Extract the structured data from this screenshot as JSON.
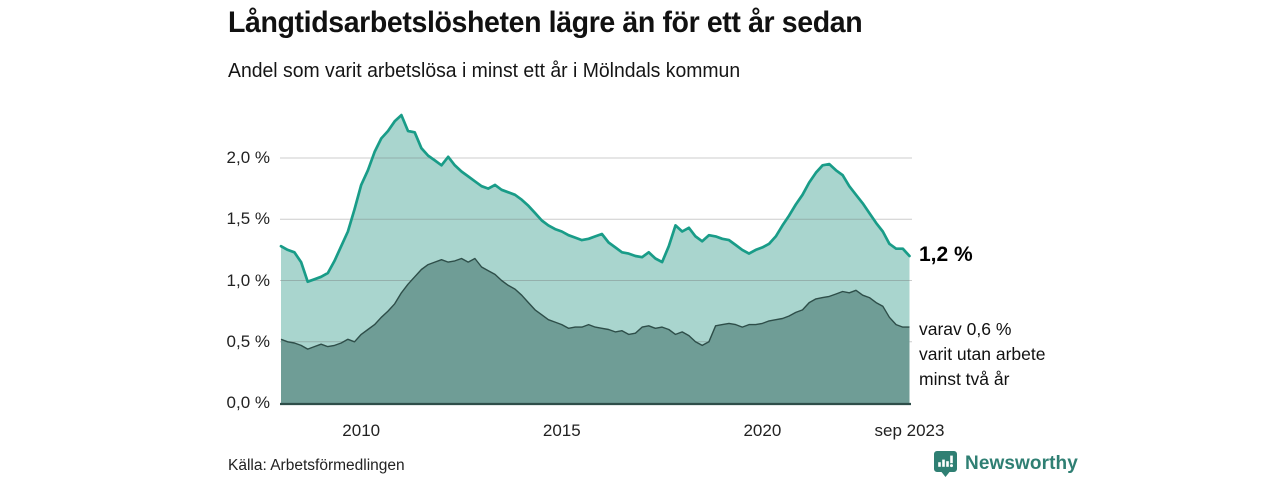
{
  "footer": {
    "brand_label": "Newsworthy"
  },
  "chart_data": {
    "type": "area",
    "title": "Långtidsarbetslösheten lägre än för ett år sedan",
    "subtitle": "Andel som varit arbetslösa i minst ett år i Mölndals kommun",
    "source": "Källa: Arbetsförmedlingen",
    "grid": "horizontal",
    "legend_position": "none",
    "x_start_year": 2008.0,
    "x_step_months": 2,
    "xlim": [
      2008.0,
      2023.75
    ],
    "ylim": [
      0,
      2.45
    ],
    "y_ticks": [
      {
        "value": 0.0,
        "label": "0,0 %"
      },
      {
        "value": 0.5,
        "label": "0,5 %"
      },
      {
        "value": 1.0,
        "label": "1,0 %"
      },
      {
        "value": 1.5,
        "label": "1,5 %"
      },
      {
        "value": 2.0,
        "label": "2,0 %"
      }
    ],
    "x_ticks": [
      {
        "year": 2010.0,
        "label": "2010"
      },
      {
        "year": 2015.0,
        "label": "2015"
      },
      {
        "year": 2020.0,
        "label": "2020"
      },
      {
        "year": 2023.667,
        "label": "sep 2023"
      }
    ],
    "series": [
      {
        "name": "Andel arbetslösa minst ett år",
        "color_fill": "#a9d5ce",
        "color_line": "#199c88",
        "latest_value": 1.2,
        "values": [
          1.28,
          1.25,
          1.23,
          1.15,
          0.99,
          1.01,
          1.03,
          1.06,
          1.16,
          1.28,
          1.4,
          1.58,
          1.78,
          1.9,
          2.05,
          2.16,
          2.22,
          2.3,
          2.35,
          2.22,
          2.21,
          2.08,
          2.02,
          1.98,
          1.94,
          2.01,
          1.94,
          1.89,
          1.85,
          1.81,
          1.77,
          1.75,
          1.78,
          1.74,
          1.72,
          1.7,
          1.66,
          1.61,
          1.55,
          1.49,
          1.45,
          1.42,
          1.4,
          1.37,
          1.35,
          1.33,
          1.34,
          1.36,
          1.38,
          1.31,
          1.27,
          1.23,
          1.22,
          1.2,
          1.19,
          1.23,
          1.18,
          1.15,
          1.28,
          1.45,
          1.4,
          1.43,
          1.36,
          1.32,
          1.37,
          1.36,
          1.34,
          1.33,
          1.29,
          1.25,
          1.22,
          1.25,
          1.27,
          1.3,
          1.36,
          1.45,
          1.53,
          1.62,
          1.7,
          1.8,
          1.88,
          1.94,
          1.95,
          1.9,
          1.86,
          1.77,
          1.7,
          1.63,
          1.55,
          1.47,
          1.4,
          1.3,
          1.26,
          1.26,
          1.2
        ]
      },
      {
        "name": "varav utan arbete minst två år",
        "color_fill": "#6f9d96",
        "color_line": "#2e4e49",
        "latest_value": 0.6,
        "values": [
          0.52,
          0.5,
          0.49,
          0.47,
          0.44,
          0.46,
          0.48,
          0.46,
          0.47,
          0.49,
          0.52,
          0.5,
          0.56,
          0.6,
          0.64,
          0.7,
          0.75,
          0.81,
          0.9,
          0.97,
          1.03,
          1.09,
          1.13,
          1.15,
          1.17,
          1.15,
          1.16,
          1.18,
          1.15,
          1.18,
          1.11,
          1.08,
          1.05,
          1.0,
          0.96,
          0.93,
          0.88,
          0.82,
          0.76,
          0.72,
          0.68,
          0.66,
          0.64,
          0.61,
          0.62,
          0.62,
          0.64,
          0.62,
          0.61,
          0.6,
          0.58,
          0.59,
          0.56,
          0.57,
          0.62,
          0.63,
          0.61,
          0.62,
          0.6,
          0.56,
          0.58,
          0.55,
          0.5,
          0.47,
          0.5,
          0.63,
          0.64,
          0.65,
          0.64,
          0.62,
          0.64,
          0.64,
          0.65,
          0.67,
          0.68,
          0.69,
          0.71,
          0.74,
          0.76,
          0.82,
          0.85,
          0.86,
          0.87,
          0.89,
          0.91,
          0.9,
          0.92,
          0.88,
          0.86,
          0.82,
          0.79,
          0.7,
          0.64,
          0.62,
          0.62
        ]
      }
    ],
    "annotation": {
      "total": "1,2 %",
      "secondary": [
        "varav 0,6 %",
        "varit utan arbete",
        "minst två år"
      ]
    },
    "colors": {
      "grid": "#d6d6d6",
      "brand_teal": "#2f7f73",
      "text": "#111111"
    }
  }
}
